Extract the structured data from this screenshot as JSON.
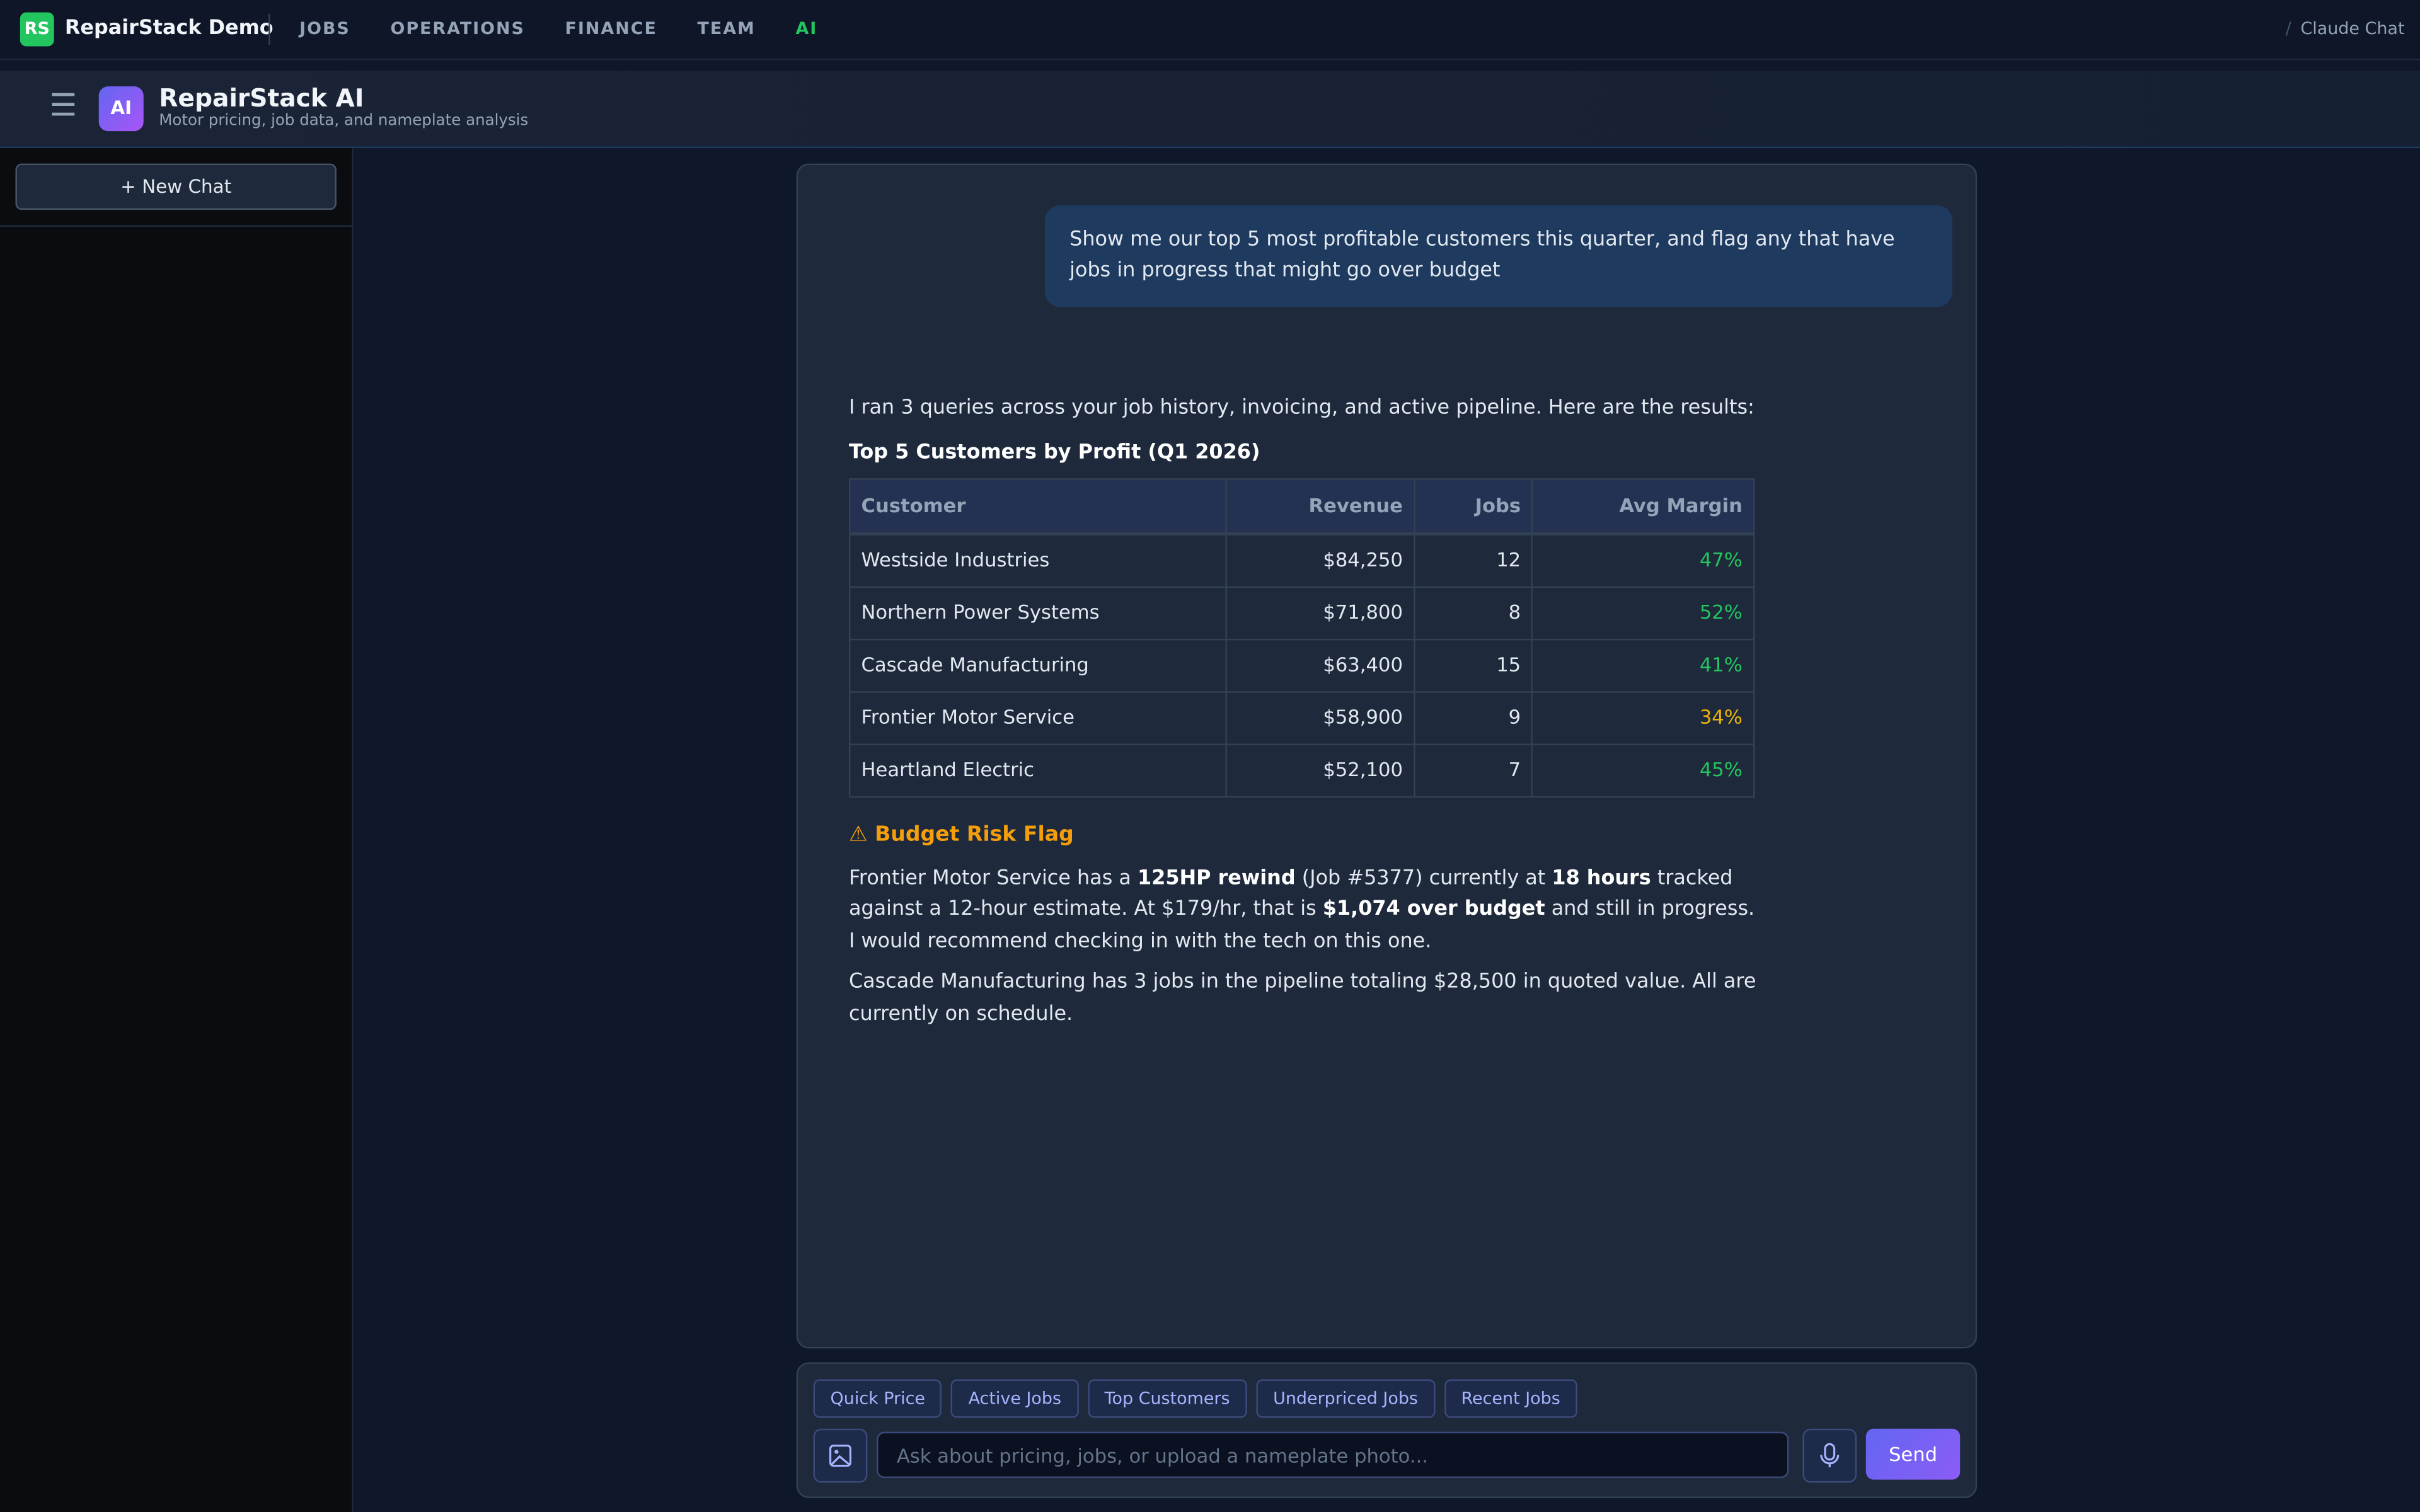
{
  "nav": {
    "logo": "RS",
    "brand": "RepairStack Demo",
    "items": [
      "JOBS",
      "OPERATIONS",
      "FINANCE",
      "TEAM",
      "AI"
    ],
    "active_color": "#22c55e",
    "breadcrumb_sep": "/",
    "breadcrumb": "Claude Chat"
  },
  "header": {
    "icon": "AI",
    "title": "RepairStack AI",
    "subtitle": "Motor pricing, job data, and nameplate analysis"
  },
  "sidebar": {
    "new_chat": "+ New Chat"
  },
  "chat": {
    "user_message": "Show me our top 5 most profitable customers this quarter, and flag any that have jobs in progress that might go over budget",
    "intro": "I ran 3 queries across your job history, invoicing, and active pipeline. Here are the results:",
    "table_title": "Top 5 Customers by Profit (Q1 2026)",
    "table": {
      "headers": [
        "Customer",
        "Revenue",
        "Jobs",
        "Avg Margin"
      ],
      "rows": [
        [
          "Westside Industries",
          "$84,250",
          "12",
          "47%"
        ],
        [
          "Northern Power Systems",
          "$71,800",
          "8",
          "52%"
        ],
        [
          "Cascade Manufacturing",
          "$63,400",
          "15",
          "41%"
        ],
        [
          "Frontier Motor Service",
          "$58,900",
          "9",
          "34%"
        ],
        [
          "Heartland Electric",
          "$52,100",
          "7",
          "45%"
        ]
      ],
      "margin_colors": [
        "#22c55e",
        "#22c55e",
        "#22c55e",
        "#eab308",
        "#22c55e"
      ]
    },
    "flag_title": "⚠ Budget Risk Flag",
    "paragraphs": [
      [
        {
          "text": "Frontier Motor Service has a "
        },
        {
          "strong": "125HP rewind"
        },
        {
          "text": " (Job #5377) currently at "
        },
        {
          "strong": "18 hours"
        },
        {
          "text": " tracked against a 12-hour estimate. At $179/hr, that is "
        },
        {
          "strong": "$1,074 over budget"
        },
        {
          "text": " and still in progress. I would recommend checking in with the tech on this one."
        }
      ],
      [
        {
          "text": "Cascade Manufacturing has 3 jobs in the pipeline totaling $28,500 in quoted value. All are currently on schedule."
        }
      ]
    ]
  },
  "composer": {
    "suggestions": [
      "Quick Price",
      "Active Jobs",
      "Top Customers",
      "Underpriced Jobs",
      "Recent Jobs"
    ],
    "placeholder": "Ask about pricing, jobs, or upload a nameplate photo...",
    "send": "Send"
  }
}
